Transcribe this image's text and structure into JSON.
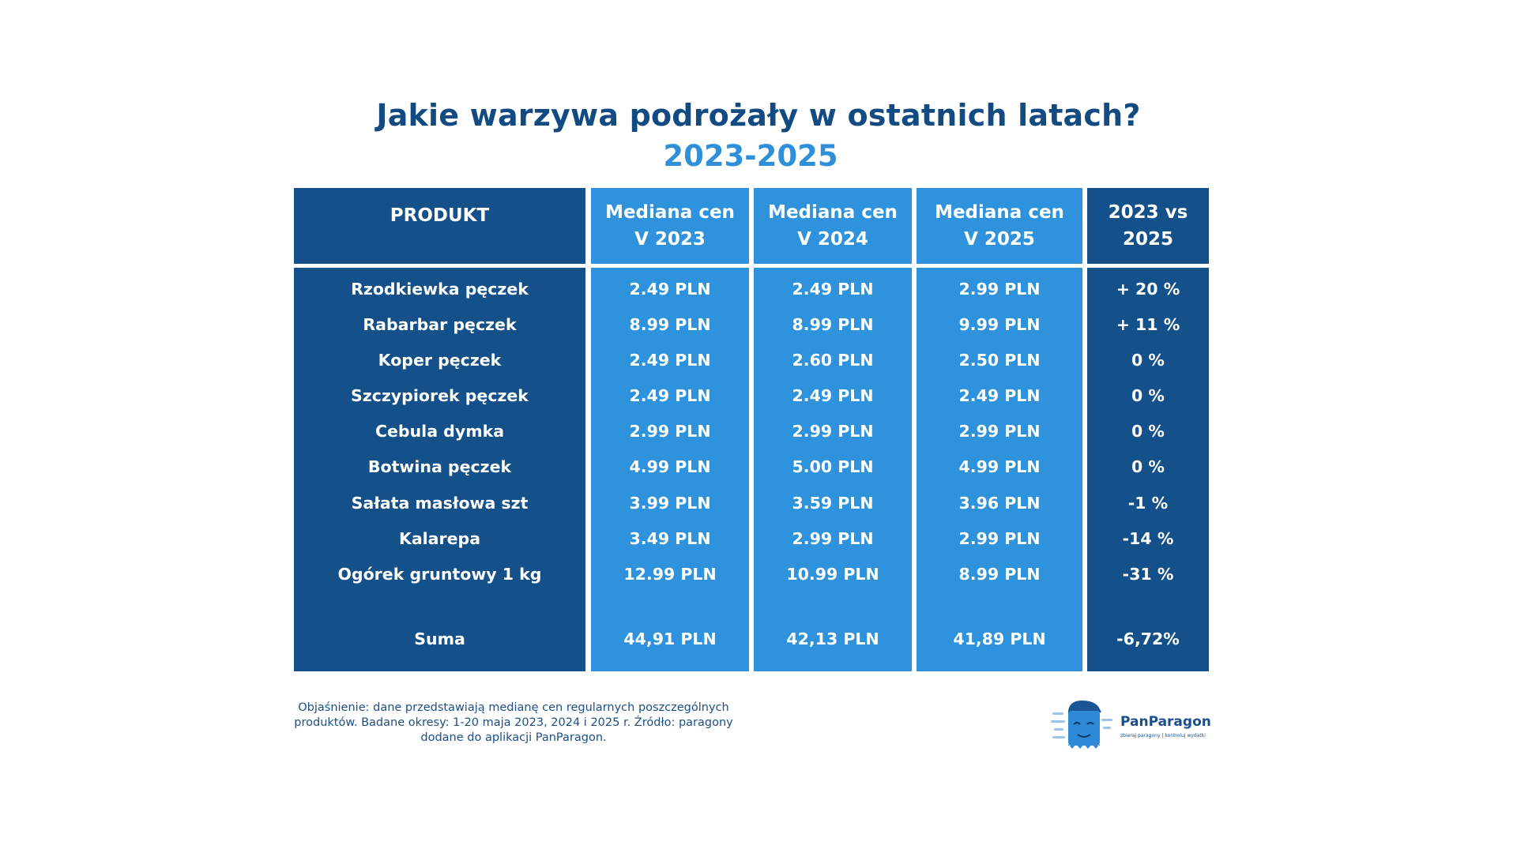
{
  "title": "Jakie warzywa podrożały w ostatnich latach?",
  "subtitle": "2023-2025",
  "chart_data": {
    "type": "table",
    "columns": [
      {
        "line1": "PRODUKT",
        "line2": ""
      },
      {
        "line1": "Mediana cen",
        "line2": "V 2023"
      },
      {
        "line1": "Mediana cen",
        "line2": "V 2024"
      },
      {
        "line1": "Mediana cen",
        "line2": "V 2025"
      },
      {
        "line1": "2023 vs 2025",
        "line2": ""
      }
    ],
    "rows": [
      [
        "Rzodkiewka pęczek",
        "2.49 PLN",
        "2.49 PLN",
        "2.99 PLN",
        "+ 20 %"
      ],
      [
        "Rabarbar pęczek",
        "8.99 PLN",
        "8.99 PLN",
        "9.99 PLN",
        "+ 11 %"
      ],
      [
        "Koper pęczek",
        "2.49 PLN",
        "2.60 PLN",
        "2.50 PLN",
        "0 %"
      ],
      [
        "Szczypiorek pęczek",
        "2.49 PLN",
        "2.49 PLN",
        "2.49 PLN",
        "0 %"
      ],
      [
        "Cebula dymka",
        "2.99 PLN",
        "2.99 PLN",
        "2.99 PLN",
        "0 %"
      ],
      [
        "Botwina pęczek",
        "4.99 PLN",
        "5.00 PLN",
        "4.99 PLN",
        "0 %"
      ],
      [
        "Sałata masłowa szt",
        "3.99 PLN",
        "3.59 PLN",
        "3.96 PLN",
        "-1 %"
      ],
      [
        "Kalarepa",
        "3.49 PLN",
        "2.99 PLN",
        "2.99 PLN",
        "-14 %"
      ],
      [
        "Ogórek gruntowy 1 kg",
        "12.99 PLN",
        "10.99 PLN",
        "8.99 PLN",
        "-31 %"
      ]
    ],
    "total": [
      "Suma",
      "44,91 PLN",
      "42,13 PLN",
      "41,89 PLN",
      "-6,72%"
    ]
  },
  "footnote": "Objaśnienie: dane przedstawiają medianę cen regularnych poszczególnych produktów. Badane okresy: 1-20 maja 2023, 2024 i 2025 r. Źródło: paragony dodane do aplikacji PanParagon.",
  "logo": {
    "name": "PanParagon",
    "tagline": "zbieraj paragony | kontroluj wydatki"
  },
  "colors": {
    "dark_column": "#14508a",
    "light_column": "#2e93dc",
    "title": "#124a82",
    "subtitle": "#2f8fd8"
  }
}
